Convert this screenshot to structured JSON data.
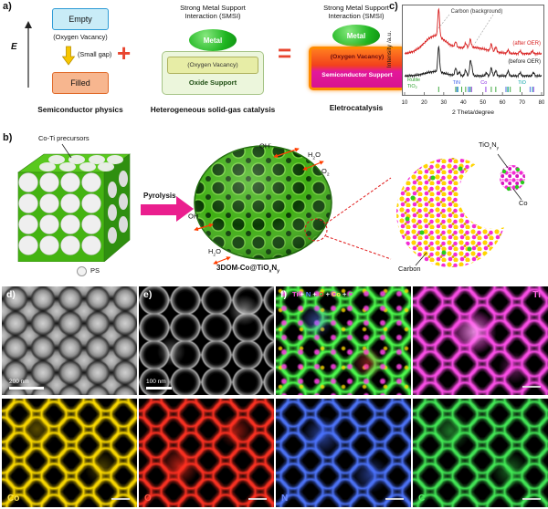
{
  "panel_labels": {
    "a": "a)",
    "b": "b)",
    "c": "c)",
    "d": "d)",
    "e": "e)",
    "f": "f)"
  },
  "panel_a": {
    "energy_axis": "E",
    "empty_box": "Empty",
    "oxygen_vacancy": "(Oxygen Vacancy)",
    "small_gap": "(Small gap)",
    "filled_box": "Filled",
    "caption_semiconductor": "Semiconductor physics",
    "smsi_title_line1": "Strong Metal Support",
    "smsi_title_line2": "Interaction (SMSI)",
    "metal": "Metal",
    "oxide_support": "Oxide Support",
    "semiconductor_support": "Semiconductor Support",
    "caption_heterogeneous": "Heterogeneous solid-gas catalysis",
    "caption_electro": "Eletrocatalysis",
    "plus_sign": "+",
    "equals_sign": "=",
    "colors": {
      "metal_green": "#1eb520",
      "empty_blue": "#c9ecf7",
      "filled_orange": "#f7b68f",
      "magenta_support": "#e3189b",
      "accent_red": "#e8452f"
    }
  },
  "panel_b": {
    "precursor_label": "Co-Ti precursors",
    "ps_label": "PS",
    "pyrolysis_label": "Pyrolysis",
    "oh": {
      "base": "OH",
      "sup": "-"
    },
    "h2o": {
      "p1": "H",
      "sub": "2",
      "p2": "O"
    },
    "o2": {
      "p1": "O",
      "sub": "2"
    },
    "product": {
      "p1": "3DOM-Co@TiO",
      "sub1": "x",
      "p2": "N",
      "sub2": "y"
    },
    "tioxny": {
      "p1": "TiO",
      "sub1": "x",
      "p2": "N",
      "sub2": "y"
    },
    "co_label": "Co",
    "carbon_label": "Carbon"
  },
  "chart_data": {
    "type": "line",
    "title": "",
    "xlabel": "2 Theta/degree",
    "ylabel": "Intensity /a.u.",
    "xlim": [
      10,
      80
    ],
    "xticks": [
      10,
      20,
      30,
      40,
      50,
      60,
      70,
      80
    ],
    "grid": false,
    "background_annotation": "Carbon (background)",
    "series": [
      {
        "name": "after OER",
        "label": "(after OER)",
        "color": "#d81f1f",
        "offset": 0.52,
        "humps": [
          [
            25.5,
            0.33,
            5.5
          ],
          [
            44.0,
            0.12,
            8.0
          ]
        ],
        "peaks": [
          [
            27.4,
            0.52
          ],
          [
            36.1,
            0.1
          ],
          [
            41.2,
            0.08
          ],
          [
            43.6,
            0.15
          ],
          [
            54.3,
            0.13
          ],
          [
            56.6,
            0.09
          ],
          [
            62.9,
            0.06
          ],
          [
            69.0,
            0.05
          ],
          [
            75.3,
            0.05
          ]
        ]
      },
      {
        "name": "before OER",
        "label": "(before OER)",
        "color": "#1a1a1a",
        "offset": 0.1,
        "humps": [
          [
            25.5,
            0.08,
            5.0
          ]
        ],
        "peaks": [
          [
            27.4,
            0.48
          ],
          [
            36.1,
            0.14
          ],
          [
            38.0,
            0.07
          ],
          [
            41.2,
            0.11
          ],
          [
            43.6,
            0.26
          ],
          [
            44.4,
            0.12
          ],
          [
            51.8,
            0.06
          ],
          [
            54.3,
            0.15
          ],
          [
            56.6,
            0.1
          ],
          [
            62.9,
            0.09
          ],
          [
            69.0,
            0.06
          ],
          [
            75.9,
            0.06
          ]
        ]
      }
    ],
    "phase_markers": [
      {
        "name": "Rutile",
        "formula": "TiO",
        "formula_sub": "2",
        "color": "#2ca02c",
        "positions": [
          27.4,
          36.1,
          39.2,
          41.2,
          44.05,
          54.3,
          56.6,
          62.7,
          64.0,
          69.0
        ]
      },
      {
        "name": "TiN",
        "color": "#3a5fe8",
        "positions": [
          36.7,
          42.6,
          61.8,
          74.1
        ]
      },
      {
        "name": "Co",
        "color": "#8a2be2",
        "positions": [
          44.2,
          51.5,
          75.9
        ]
      },
      {
        "name": "TiO",
        "color": "#0aa3a8",
        "positions": [
          37.2,
          43.3,
          62.9,
          75.3
        ]
      }
    ]
  },
  "micrographs": {
    "scalebar_d": "200 nm",
    "scalebar_e": "100 nm",
    "composite_legend": [
      {
        "text": "Ti",
        "color": "#ff55dd"
      },
      {
        "text": "+",
        "color": "#ffffff"
      },
      {
        "text": "N",
        "color": "#5c7dff"
      },
      {
        "text": "+",
        "color": "#ffffff"
      },
      {
        "text": "O",
        "color": "#ff4433"
      },
      {
        "text": "+",
        "color": "#ffffff"
      },
      {
        "text": "Co",
        "color": "#ffe44d"
      },
      {
        "text": "+",
        "color": "#ffffff"
      },
      {
        "text": "C",
        "color": "#4dee55"
      }
    ],
    "map_labels": {
      "ti": "Ti",
      "co": "Co",
      "o": "O",
      "n": "N",
      "c": "C"
    },
    "map_colors": {
      "ti": "#ff66e6",
      "co": "#ffe44d",
      "o": "#ff5544",
      "n": "#6f8dff",
      "c": "#55ee66"
    }
  }
}
